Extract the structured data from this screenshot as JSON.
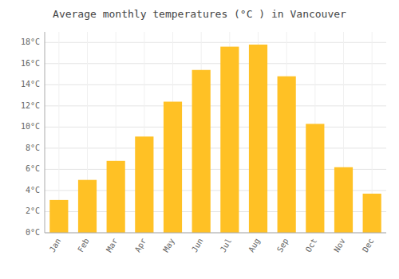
{
  "chart_data": {
    "type": "bar",
    "title": "Average monthly temperatures (°C ) in Vancouver",
    "categories": [
      "Jan",
      "Feb",
      "Mar",
      "Apr",
      "May",
      "Jun",
      "Jul",
      "Aug",
      "Sep",
      "Oct",
      "Nov",
      "Dec"
    ],
    "values": [
      3.1,
      5.0,
      6.8,
      9.1,
      12.4,
      15.4,
      17.6,
      17.8,
      14.8,
      10.3,
      6.2,
      3.7
    ],
    "color": "#FFC125",
    "ylim": [
      0,
      19
    ],
    "yticks": [
      {
        "value": 0,
        "label": "0°C"
      },
      {
        "value": 2,
        "label": "2°C"
      },
      {
        "value": 4,
        "label": "4°C"
      },
      {
        "value": 6,
        "label": "6°C"
      },
      {
        "value": 8,
        "label": "8°C"
      },
      {
        "value": 10,
        "label": "10°C"
      },
      {
        "value": 12,
        "label": "12°C"
      },
      {
        "value": 14,
        "label": "14°C"
      },
      {
        "value": 16,
        "label": "16°C"
      },
      {
        "value": 18,
        "label": "18°C"
      }
    ],
    "grid": true
  }
}
